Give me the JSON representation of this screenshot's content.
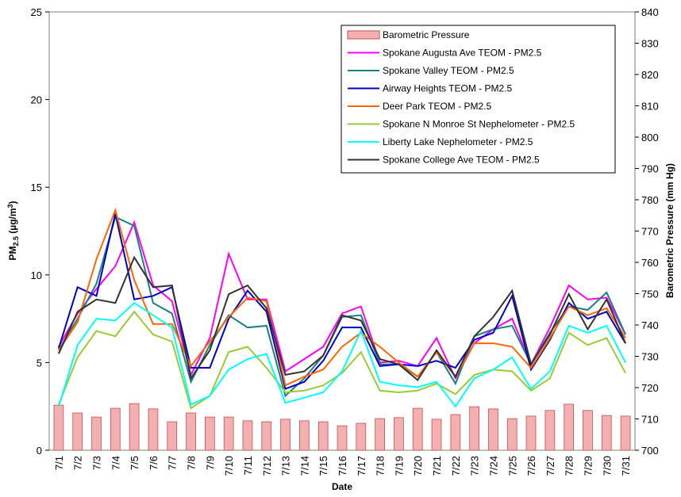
{
  "chart_data": {
    "type": "line",
    "x_label": "Date",
    "y_label": [
      "PM",
      "2.5",
      " (µg/m",
      "3",
      ")"
    ],
    "y2_label": "Barometric Pressure (mm Hg)",
    "categories": [
      "7/1",
      "7/2",
      "7/3",
      "7/4",
      "7/5",
      "7/6",
      "7/7",
      "7/8",
      "7/9",
      "7/10",
      "7/11",
      "7/12",
      "7/13",
      "7/14",
      "7/15",
      "7/16",
      "7/17",
      "7/18",
      "7/19",
      "7/20",
      "7/21",
      "7/22",
      "7/23",
      "7/24",
      "7/25",
      "7/26",
      "7/27",
      "7/28",
      "7/29",
      "7/30",
      "7/31"
    ],
    "ylim": [
      0,
      25
    ],
    "yticks": [
      0,
      5,
      10,
      15,
      20,
      25
    ],
    "y2lim": [
      700,
      840
    ],
    "y2ticks": [
      700,
      710,
      720,
      730,
      740,
      750,
      760,
      770,
      780,
      790,
      800,
      810,
      820,
      830,
      840
    ],
    "legend": "top-right",
    "series": [
      {
        "name": "Barometric Pressure",
        "type": "bar",
        "axis": "y2",
        "color": "#f4b0b0",
        "values": [
          714.4,
          711.9,
          710.6,
          713.4,
          714.9,
          713.2,
          709.1,
          711.9,
          710.6,
          710.6,
          709.4,
          709.1,
          709.9,
          709.4,
          709.1,
          707.8,
          708.6,
          710.1,
          710.4,
          713.4,
          709.9,
          711.4,
          713.9,
          713.2,
          710.1,
          710.9,
          712.7,
          714.7,
          712.7,
          711.1,
          710.9
        ]
      },
      {
        "name": "Spokane Augusta Ave TEOM - PM2.5",
        "color": "#ff00ff",
        "values": [
          5.9,
          7.8,
          9.2,
          10.5,
          13.0,
          9.4,
          8.5,
          4.3,
          6.4,
          11.2,
          8.6,
          8.6,
          4.5,
          5.2,
          5.9,
          7.8,
          8.2,
          5.0,
          5.1,
          4.8,
          6.4,
          4.1,
          6.1,
          6.9,
          7.5,
          4.9,
          7.0,
          9.4,
          8.6,
          8.7,
          6.6
        ]
      },
      {
        "name": "Spokane Valley TEOM - PM2.5",
        "color": "#1a8080",
        "values": [
          5.7,
          7.5,
          9.5,
          13.3,
          12.8,
          8.4,
          7.8,
          3.9,
          6.0,
          7.7,
          7.0,
          7.1,
          3.1,
          4.1,
          5.4,
          7.6,
          7.7,
          4.9,
          4.9,
          4.2,
          5.6,
          3.8,
          6.5,
          6.9,
          7.1,
          4.9,
          6.7,
          8.2,
          8.0,
          9.0,
          6.6
        ]
      },
      {
        "name": "Airway Heights TEOM - PM2.5",
        "color": "#0000cc",
        "values": [
          5.8,
          9.3,
          8.8,
          13.5,
          8.6,
          8.8,
          9.3,
          4.7,
          4.7,
          7.5,
          9.1,
          7.9,
          3.5,
          3.9,
          5.1,
          7.0,
          7.0,
          4.8,
          4.9,
          4.8,
          5.1,
          4.7,
          6.3,
          6.7,
          8.8,
          4.6,
          6.3,
          8.4,
          7.5,
          7.9,
          6.1
        ]
      },
      {
        "name": "Deer Park TEOM - PM2.5",
        "color": "#ff6600",
        "values": [
          5.7,
          7.3,
          10.9,
          13.7,
          9.7,
          7.2,
          7.2,
          4.8,
          6.2,
          7.6,
          8.7,
          8.5,
          3.7,
          4.2,
          4.6,
          5.9,
          6.7,
          5.9,
          5.0,
          4.2,
          5.6,
          4.2,
          6.1,
          6.1,
          5.9,
          4.7,
          6.4,
          8.2,
          7.7,
          8.1,
          6.4
        ]
      },
      {
        "name": "Spokane N Monroe St Nephelometer - PM2.5",
        "color": "#99cc33",
        "values": [
          2.6,
          5.3,
          6.8,
          6.5,
          7.9,
          6.6,
          6.2,
          2.4,
          3.1,
          5.6,
          5.9,
          4.7,
          3.3,
          3.4,
          3.7,
          4.4,
          5.6,
          3.4,
          3.3,
          3.4,
          3.8,
          3.2,
          4.3,
          4.6,
          4.5,
          3.4,
          4.1,
          6.7,
          6.0,
          6.4,
          4.4
        ]
      },
      {
        "name": "Liberty Lake Nephelometer - PM2.5",
        "color": "#00ffff",
        "values": [
          2.5,
          6.0,
          7.5,
          7.4,
          8.4,
          7.7,
          7.0,
          2.6,
          3.1,
          4.6,
          5.2,
          5.5,
          2.7,
          3.0,
          3.3,
          4.5,
          6.8,
          3.9,
          3.7,
          3.6,
          3.9,
          2.5,
          4.1,
          4.6,
          5.3,
          3.5,
          4.5,
          7.1,
          6.7,
          7.1,
          5.0
        ]
      },
      {
        "name": "Spokane College Ave TEOM - PM2.5",
        "color": "#333333",
        "values": [
          5.5,
          7.9,
          8.6,
          8.4,
          11.0,
          9.3,
          9.4,
          4.1,
          5.7,
          8.9,
          9.4,
          8.1,
          4.3,
          4.5,
          5.4,
          7.7,
          7.4,
          5.2,
          4.9,
          4.0,
          5.7,
          4.2,
          6.5,
          7.6,
          9.1,
          4.9,
          6.6,
          8.9,
          6.9,
          8.6,
          6.1
        ]
      }
    ]
  }
}
